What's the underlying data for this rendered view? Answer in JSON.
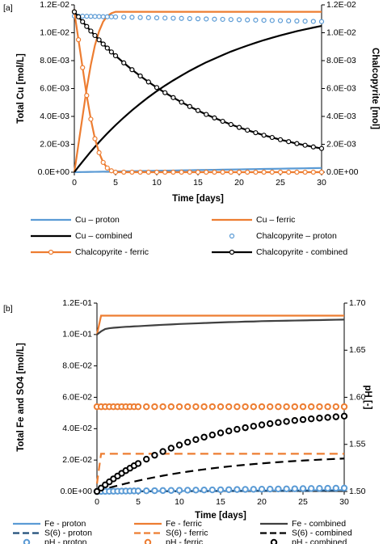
{
  "chart_data": [
    {
      "type": "line",
      "panel_label": "[a]",
      "x_label": "Time [days]",
      "y_label": "Total Cu [mol/L]",
      "y2_label": "Chalcopyrite [mol]",
      "x": [
        0,
        0.5,
        1,
        1.5,
        2,
        2.5,
        3,
        3.5,
        4,
        4.5,
        5,
        6,
        7,
        8,
        9,
        10,
        11,
        12,
        13,
        14,
        15,
        16,
        17,
        18,
        19,
        20,
        21,
        22,
        23,
        24,
        25,
        26,
        27,
        28,
        29,
        30
      ],
      "xlim": [
        0,
        30
      ],
      "xticks": [
        0,
        5,
        10,
        15,
        20,
        25,
        30
      ],
      "ylim": [
        0,
        0.012
      ],
      "yticks": [
        {
          "value": 0,
          "label": "0.0E+00"
        },
        {
          "value": 0.002,
          "label": "2.0E-03"
        },
        {
          "value": 0.004,
          "label": "4.0E-03"
        },
        {
          "value": 0.006,
          "label": "6.0E-03"
        },
        {
          "value": 0.008,
          "label": "8.0E-03"
        },
        {
          "value": 0.01,
          "label": "1.0E-02"
        },
        {
          "value": 0.012,
          "label": "1.2E-02"
        }
      ],
      "y2lim": [
        0,
        0.012
      ],
      "y2ticks": [
        {
          "value": 0,
          "label": "0.0E+00"
        },
        {
          "value": 0.002,
          "label": "2.0E-03"
        },
        {
          "value": 0.004,
          "label": "4.0E-03"
        },
        {
          "value": 0.006,
          "label": "6.0E-03"
        },
        {
          "value": 0.008,
          "label": "8.0E-03"
        },
        {
          "value": 0.01,
          "label": "1.0E-02"
        },
        {
          "value": 0.012,
          "label": "1.2E-02"
        }
      ],
      "series": [
        {
          "name": "Cu – proton",
          "color": "#5b9bd5",
          "line_style": "solid",
          "marker": "none",
          "values": [
            0,
            5e-06,
            1e-05,
            1.5e-05,
            2e-05,
            2.5e-05,
            3e-05,
            3.5e-05,
            4e-05,
            4.5e-05,
            5e-05,
            6e-05,
            7e-05,
            8e-05,
            9e-05,
            0.0001,
            0.00011,
            0.00012,
            0.00013,
            0.00014,
            0.00015,
            0.00016,
            0.00017,
            0.00018,
            0.00019,
            0.0002,
            0.00021,
            0.00022,
            0.00023,
            0.00024,
            0.00025,
            0.00026,
            0.00027,
            0.00028,
            0.00029,
            0.0003
          ]
        },
        {
          "name": "Cu – ferric",
          "color": "#ed7d31",
          "line_style": "solid",
          "marker": "none",
          "values": [
            0,
            0.002,
            0.004,
            0.006,
            0.0077,
            0.0091,
            0.0101,
            0.0108,
            0.0112,
            0.0114,
            0.0115,
            0.0115,
            0.0115,
            0.0115,
            0.0115,
            0.0115,
            0.0115,
            0.0115,
            0.0115,
            0.0115,
            0.0115,
            0.0115,
            0.0115,
            0.0115,
            0.0115,
            0.0115,
            0.0115,
            0.0115,
            0.0115,
            0.0115,
            0.0115,
            0.0115,
            0.0115,
            0.0115,
            0.0115,
            0.0115
          ]
        },
        {
          "name": "Cu – combined",
          "color": "#000000",
          "line_style": "solid",
          "marker": "none",
          "values": [
            0,
            0.00039,
            0.00076,
            0.00112,
            0.00148,
            0.00182,
            0.00215,
            0.00247,
            0.00278,
            0.00308,
            0.00337,
            0.00392,
            0.00444,
            0.00492,
            0.00538,
            0.00581,
            0.00621,
            0.00658,
            0.00693,
            0.00727,
            0.00758,
            0.00788,
            0.00814,
            0.0084,
            0.00865,
            0.00887,
            0.00908,
            0.00928,
            0.00947,
            0.00964,
            0.00981,
            0.00996,
            0.01011,
            0.01024,
            0.01037,
            0.01049
          ]
        },
        {
          "name": "Chalcopyrite – proton",
          "color": "#5b9bd5",
          "line_style": "none",
          "marker": "circle",
          "axis": "y2",
          "values": [
            0.0112,
            0.011193,
            0.011187,
            0.01118,
            0.011173,
            0.011167,
            0.01116,
            0.011153,
            0.011147,
            0.01114,
            0.011133,
            0.01112,
            0.011107,
            0.011093,
            0.01108,
            0.011067,
            0.011053,
            0.01104,
            0.011027,
            0.011013,
            0.011,
            0.010987,
            0.010973,
            0.01096,
            0.010947,
            0.010933,
            0.01092,
            0.010907,
            0.010893,
            0.01088,
            0.010867,
            0.010853,
            0.01084,
            0.010827,
            0.010813,
            0.0108
          ]
        },
        {
          "name": "Chalcopyrite - ferric",
          "color": "#ed7d31",
          "line_style": "solid",
          "marker": "circle",
          "axis": "y2",
          "values": [
            0.0115,
            0.0095,
            0.0075,
            0.0055,
            0.0038,
            0.0024,
            0.0014,
            0.0007,
            0.0003,
            0.0001,
            0,
            0,
            0,
            0,
            0,
            0,
            0,
            0,
            0,
            0,
            0,
            0,
            0,
            0,
            0,
            0,
            0,
            0,
            0,
            0,
            0,
            0,
            0,
            0,
            0,
            0
          ]
        },
        {
          "name": "Chalcopyrite - combined",
          "color": "#000000",
          "line_style": "solid",
          "marker": "circle",
          "axis": "y2",
          "values": [
            0.0115,
            0.01114,
            0.01079,
            0.01045,
            0.01012,
            0.0098,
            0.00949,
            0.00919,
            0.0089,
            0.00862,
            0.00835,
            0.00784,
            0.00735,
            0.0069,
            0.00647,
            0.00607,
            0.0057,
            0.00535,
            0.00502,
            0.00471,
            0.00442,
            0.00414,
            0.00389,
            0.00365,
            0.00342,
            0.00321,
            0.00301,
            0.00283,
            0.00265,
            0.00249,
            0.00233,
            0.00219,
            0.00205,
            0.00193,
            0.00181,
            0.0017
          ]
        }
      ]
    },
    {
      "type": "line",
      "panel_label": "[b]",
      "x_label": "Time [days]",
      "y_label": "Total Fe and SO4 [mol/L]",
      "y2_label": "pH [-]",
      "x": [
        0,
        0.5,
        1,
        1.5,
        2,
        2.5,
        3,
        3.5,
        4,
        4.5,
        5,
        6,
        7,
        8,
        9,
        10,
        11,
        12,
        13,
        14,
        15,
        16,
        17,
        18,
        19,
        20,
        21,
        22,
        23,
        24,
        25,
        26,
        27,
        28,
        29,
        30
      ],
      "xlim": [
        0,
        30
      ],
      "xticks": [
        0,
        5,
        10,
        15,
        20,
        25,
        30
      ],
      "ylim": [
        0,
        0.12
      ],
      "yticks": [
        {
          "value": 0,
          "label": "0.0E+00"
        },
        {
          "value": 0.02,
          "label": "2.0E-02"
        },
        {
          "value": 0.04,
          "label": "4.0E-02"
        },
        {
          "value": 0.06,
          "label": "6.0E-02"
        },
        {
          "value": 0.08,
          "label": "8.0E-02"
        },
        {
          "value": 0.1,
          "label": "1.0E-01"
        },
        {
          "value": 0.12,
          "label": "1.2E-01"
        }
      ],
      "y2lim": [
        1.5,
        1.7
      ],
      "y2ticks": [
        {
          "value": 1.5,
          "label": "1.50"
        },
        1.55,
        {
          "value": 1.6,
          "label": "1.60"
        },
        1.65,
        {
          "value": 1.7,
          "label": "1.70"
        }
      ],
      "series": [
        {
          "name": "Fe - proton",
          "color": "#5b9bd5",
          "line_style": "solid",
          "marker": "none",
          "values": [
            0,
            1.5e-05,
            3e-05,
            4.5e-05,
            6e-05,
            7.5e-05,
            9e-05,
            0.000105,
            0.00012,
            0.000135,
            0.00015,
            0.00018,
            0.00021,
            0.00024,
            0.00027,
            0.0003,
            0.00033,
            0.00036,
            0.00039,
            0.00042,
            0.00045,
            0.00048,
            0.00051,
            0.00054,
            0.00057,
            0.0006,
            0.00063,
            0.00066,
            0.00069,
            0.00072,
            0.00075,
            0.00078,
            0.00081,
            0.00084,
            0.00087,
            0.0009
          ]
        },
        {
          "name": "Fe - ferric",
          "color": "#ed7d31",
          "line_style": "solid",
          "marker": "none",
          "values": [
            0.1,
            0.112,
            0.112,
            0.112,
            0.112,
            0.112,
            0.112,
            0.112,
            0.112,
            0.112,
            0.112,
            0.112,
            0.112,
            0.112,
            0.112,
            0.112,
            0.112,
            0.112,
            0.112,
            0.112,
            0.112,
            0.112,
            0.112,
            0.112,
            0.112,
            0.112,
            0.112,
            0.112,
            0.112,
            0.112,
            0.112,
            0.112,
            0.112,
            0.112,
            0.112,
            0.112
          ]
        },
        {
          "name": "Fe - combined",
          "color": "#404040",
          "line_style": "solid",
          "marker": "none",
          "values": [
            0.1,
            0.102,
            0.1035,
            0.104,
            0.1043,
            0.1045,
            0.1047,
            0.1049,
            0.105,
            0.1052,
            0.1053,
            0.1056,
            0.1059,
            0.1062,
            0.1064,
            0.1067,
            0.1069,
            0.1071,
            0.1073,
            0.1075,
            0.1077,
            0.1079,
            0.108,
            0.1082,
            0.1083,
            0.1085,
            0.1086,
            0.1087,
            0.1088,
            0.1089,
            0.109,
            0.1091,
            0.1092,
            0.1093,
            0.1094,
            0.1095
          ]
        },
        {
          "name": "S(6) - proton",
          "color": "#1f4e79",
          "line_style": "dashed",
          "marker": "none",
          "values": [
            0,
            7.5e-06,
            1.5e-05,
            2.25e-05,
            3e-05,
            3.75e-05,
            4.5e-05,
            5.25e-05,
            6e-05,
            6.75e-05,
            7.5e-05,
            9e-05,
            0.000105,
            0.00012,
            0.000135,
            0.00015,
            0.000165,
            0.00018,
            0.000195,
            0.00021,
            0.000225,
            0.00024,
            0.000255,
            0.00027,
            0.000285,
            0.0003,
            0.000315,
            0.00033,
            0.000345,
            0.00036,
            0.000375,
            0.00039,
            0.000405,
            0.00042,
            0.000435,
            0.00045
          ]
        },
        {
          "name": "S(6) - ferric",
          "color": "#ed7d31",
          "line_style": "dashed",
          "marker": "none",
          "values": [
            0.005,
            0.024,
            0.024,
            0.024,
            0.024,
            0.024,
            0.024,
            0.024,
            0.024,
            0.024,
            0.024,
            0.024,
            0.024,
            0.024,
            0.024,
            0.024,
            0.024,
            0.024,
            0.024,
            0.024,
            0.024,
            0.024,
            0.024,
            0.024,
            0.024,
            0.024,
            0.024,
            0.024,
            0.024,
            0.024,
            0.024,
            0.024,
            0.024,
            0.024,
            0.024,
            0.024
          ]
        },
        {
          "name": "S(6) - combined",
          "color": "#000000",
          "line_style": "dashed",
          "marker": "none",
          "values": [
            0,
            0.0008,
            0.00157,
            0.00231,
            0.00303,
            0.00372,
            0.0044,
            0.00505,
            0.00568,
            0.0063,
            0.00688,
            0.00801,
            0.00906,
            0.01004,
            0.01096,
            0.01182,
            0.01262,
            0.01338,
            0.01408,
            0.01474,
            0.01535,
            0.01593,
            0.01647,
            0.01697,
            0.01744,
            0.01788,
            0.01829,
            0.01868,
            0.01904,
            0.01938,
            0.01969,
            0.01998,
            0.02025,
            0.02051,
            0.02075,
            0.021
          ]
        },
        {
          "name": "pH - proton",
          "color": "#5b9bd5",
          "line_style": "none",
          "marker": "circle",
          "axis": "y2",
          "values": [
            1.5,
            1.50006,
            1.50012,
            1.50018,
            1.50024,
            1.5003,
            1.50036,
            1.50042,
            1.50048,
            1.50054,
            1.5006,
            1.50072,
            1.50084,
            1.50096,
            1.50108,
            1.5012,
            1.50132,
            1.50144,
            1.50156,
            1.50168,
            1.5018,
            1.50192,
            1.50204,
            1.50216,
            1.50228,
            1.5024,
            1.50252,
            1.50264,
            1.50276,
            1.50288,
            1.503,
            1.50312,
            1.50324,
            1.50336,
            1.50348,
            1.5036
          ]
        },
        {
          "name": "pH - ferric",
          "color": "#ed7d31",
          "line_style": "none",
          "marker": "circle",
          "axis": "y2",
          "values": [
            1.59,
            1.59,
            1.59,
            1.59,
            1.59,
            1.59,
            1.59,
            1.59,
            1.59,
            1.59,
            1.59,
            1.59,
            1.59,
            1.59,
            1.59,
            1.59,
            1.59,
            1.59,
            1.59,
            1.59,
            1.59,
            1.59,
            1.59,
            1.59,
            1.59,
            1.59,
            1.59,
            1.59,
            1.59,
            1.59,
            1.59,
            1.59,
            1.59,
            1.59,
            1.59,
            1.59
          ]
        },
        {
          "name": "pH - combined",
          "color": "#000000",
          "line_style": "none",
          "marker": "circle",
          "axis": "y2",
          "values": [
            1.5,
            1.5036,
            1.507,
            1.5102,
            1.5134,
            1.5164,
            1.5193,
            1.5221,
            1.5247,
            1.5273,
            1.5297,
            1.5343,
            1.5385,
            1.5424,
            1.546,
            1.5493,
            1.5523,
            1.5551,
            1.5577,
            1.56,
            1.5622,
            1.5642,
            1.566,
            1.5677,
            1.5693,
            1.5707,
            1.572,
            1.5732,
            1.5743,
            1.5754,
            1.5763,
            1.5771,
            1.5779,
            1.5786,
            1.5793,
            1.58
          ]
        }
      ]
    }
  ]
}
